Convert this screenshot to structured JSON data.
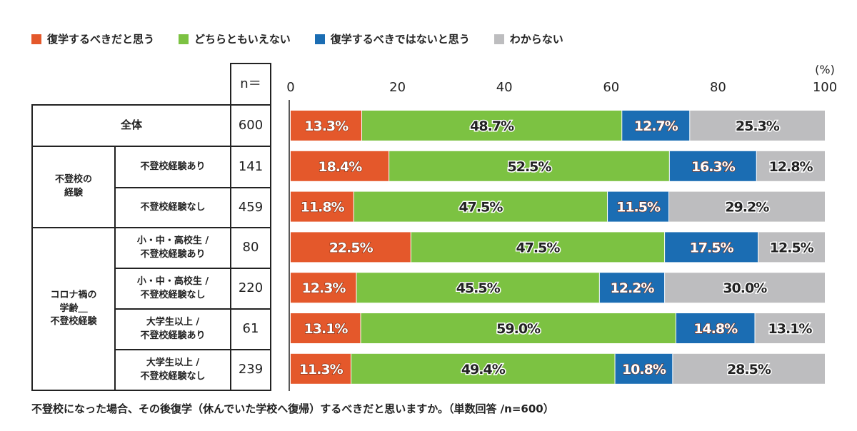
{
  "chart_data": {
    "type": "bar",
    "orientation": "horizontal-stacked",
    "unit_label": "(%)",
    "xlim": [
      0,
      100
    ],
    "xticks": [
      0,
      20,
      40,
      60,
      80,
      100
    ],
    "legend_position": "top",
    "n_header": "n＝",
    "categories": [
      {
        "group": "",
        "label": "全体",
        "n": "600"
      },
      {
        "group": "不登校の\n経験",
        "label": "不登校経験あり",
        "n": "141"
      },
      {
        "group": "不登校の\n経験",
        "label": "不登校経験なし",
        "n": "459"
      },
      {
        "group": "コロナ禍の\n学齢＿\n不登校経験",
        "label": "小・中・高校生 /\n不登校経験あり",
        "n": "80"
      },
      {
        "group": "コロナ禍の\n学齢＿\n不登校経験",
        "label": "小・中・高校生 /\n不登校経験なし",
        "n": "220"
      },
      {
        "group": "コロナ禍の\n学齢＿\n不登校経験",
        "label": "大学生以上 /\n不登校経験あり",
        "n": "61"
      },
      {
        "group": "コロナ禍の\n学齢＿\n不登校経験",
        "label": "大学生以上 /\n不登校経験なし",
        "n": "239"
      }
    ],
    "groups": [
      {
        "label": "全体"
      },
      {
        "label": "不登校の\n経験"
      },
      {
        "label": "コロナ禍の\n学齢＿\n不登校経験"
      }
    ],
    "series": [
      {
        "name": "復学するべきだと思う",
        "color": "#e4582b",
        "values": [
          13.3,
          18.4,
          11.8,
          22.5,
          12.3,
          13.1,
          11.3
        ]
      },
      {
        "name": "どちらともいえない",
        "color": "#7cc242",
        "values": [
          48.7,
          52.5,
          47.5,
          47.5,
          45.5,
          59.0,
          49.4
        ]
      },
      {
        "name": "復学するべきではないと思う",
        "color": "#1b6db3",
        "values": [
          12.7,
          16.3,
          11.5,
          17.5,
          12.2,
          14.8,
          10.8
        ]
      },
      {
        "name": "わからない",
        "color": "#bdbdbf",
        "values": [
          25.3,
          12.8,
          29.2,
          12.5,
          30.0,
          13.1,
          28.5
        ]
      }
    ],
    "caption": "不登校になった場合、その後復学（休んでいた学校へ復帰）するべきだと思いますか。（単数回答 /n=600）"
  }
}
